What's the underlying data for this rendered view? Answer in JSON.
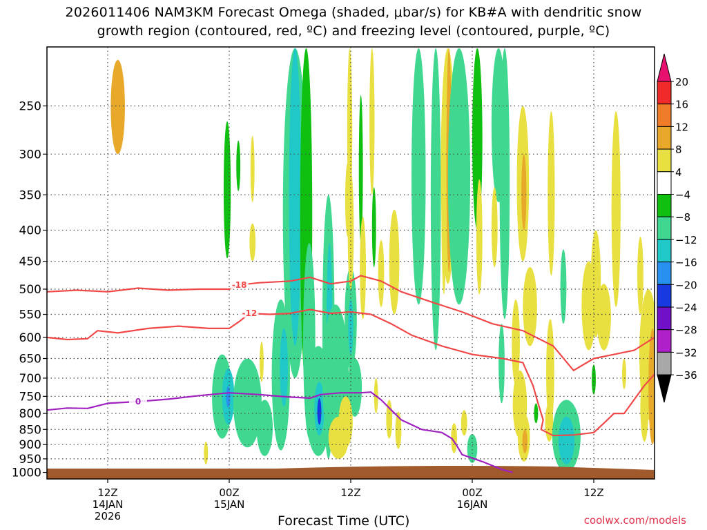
{
  "title_line1": "2026011406 NAM3KM Forecast Omega (shaded, μbar/s) for KB#A with dendritic snow",
  "title_line2": "growth region (contoured, red, ºC) and freezing level (contoured, purple, ºC)",
  "credit": "coolwx.com/models",
  "chart_data": {
    "type": "heatmap",
    "title": "2026011406 NAM3KM Forecast Omega (shaded, μbar/s) for KB#A with dendritic snow growth region (contoured, red, ºC) and freezing level (contoured, purple, ºC)",
    "xlabel": "Forecast Time (UTC)",
    "ylabel": "",
    "x_range_hours": [
      6,
      66
    ],
    "y_range_hpa": [
      200,
      1025
    ],
    "y_ticks": [
      250,
      300,
      350,
      400,
      450,
      500,
      550,
      600,
      650,
      700,
      750,
      800,
      850,
      900,
      950,
      1000
    ],
    "x_ticks": [
      {
        "hour": 12,
        "lines": [
          "12Z",
          "14JAN",
          "2026"
        ]
      },
      {
        "hour": 24,
        "lines": [
          "00Z",
          "15JAN"
        ]
      },
      {
        "hour": 36,
        "lines": [
          "12Z"
        ]
      },
      {
        "hour": 48,
        "lines": [
          "00Z",
          "16JAN"
        ]
      },
      {
        "hour": 60,
        "lines": [
          "12Z"
        ]
      }
    ],
    "grid": true,
    "colorbar": {
      "labels": [
        "20",
        "16",
        "12",
        "8",
        "4",
        "−4",
        "−8",
        "−12",
        "−16",
        "−20",
        "−24",
        "−28",
        "−32",
        "−36"
      ],
      "colors": [
        "#e8106e",
        "#f02a2a",
        "#f07c2a",
        "#e8a82a",
        "#e8e040",
        "#ffffff",
        "#10c010",
        "#40d890",
        "#20c8c8",
        "#2890f0",
        "#1838e0",
        "#7010c8",
        "#b020c8",
        "#a8a8a8",
        "#000000"
      ]
    },
    "contours": [
      {
        "label": "-18",
        "color": "#f04848",
        "points": [
          [
            6,
            505
          ],
          [
            9,
            502
          ],
          [
            12,
            505
          ],
          [
            15,
            498
          ],
          [
            18,
            502
          ],
          [
            21,
            500
          ],
          [
            24,
            500
          ],
          [
            25,
            492
          ],
          [
            27,
            488
          ],
          [
            30,
            485
          ],
          [
            32,
            478
          ],
          [
            34,
            490
          ],
          [
            36,
            485
          ],
          [
            37,
            475
          ],
          [
            39,
            485
          ],
          [
            41,
            505
          ],
          [
            44,
            525
          ],
          [
            47,
            545
          ],
          [
            50,
            570
          ],
          [
            53,
            585
          ],
          [
            56,
            620
          ],
          [
            58,
            680
          ],
          [
            60,
            650
          ],
          [
            62,
            640
          ],
          [
            64,
            630
          ],
          [
            66,
            600
          ]
        ]
      },
      {
        "label": "-12",
        "color": "#f04848",
        "points": [
          [
            6,
            600
          ],
          [
            8,
            605
          ],
          [
            10,
            603
          ],
          [
            11,
            585
          ],
          [
            13,
            590
          ],
          [
            16,
            580
          ],
          [
            19,
            575
          ],
          [
            22,
            580
          ],
          [
            24,
            580
          ],
          [
            25,
            565
          ],
          [
            26,
            548
          ],
          [
            28,
            550
          ],
          [
            30,
            548
          ],
          [
            32,
            540
          ],
          [
            34,
            548
          ],
          [
            36,
            545
          ],
          [
            38,
            550
          ],
          [
            40,
            570
          ],
          [
            42,
            595
          ],
          [
            45,
            620
          ],
          [
            48,
            640
          ],
          [
            51,
            650
          ],
          [
            53,
            660
          ],
          [
            54,
            720
          ],
          [
            54.5,
            770
          ],
          [
            55,
            820
          ],
          [
            54.8,
            850
          ],
          [
            56,
            870
          ],
          [
            58,
            868
          ],
          [
            60,
            860
          ],
          [
            61,
            830
          ],
          [
            62,
            800
          ],
          [
            63,
            800
          ],
          [
            65,
            720
          ],
          [
            66,
            690
          ]
        ]
      },
      {
        "label": "0",
        "color": "#a020c0",
        "points": [
          [
            6,
            790
          ],
          [
            8,
            784
          ],
          [
            10,
            785
          ],
          [
            12,
            770
          ],
          [
            15,
            765
          ],
          [
            18,
            758
          ],
          [
            21,
            748
          ],
          [
            24,
            740
          ],
          [
            27,
            745
          ],
          [
            30,
            752
          ],
          [
            32,
            755
          ],
          [
            33,
            745
          ],
          [
            35,
            740
          ],
          [
            37,
            740
          ],
          [
            38,
            738
          ],
          [
            39,
            760
          ],
          [
            40,
            790
          ],
          [
            41,
            820
          ],
          [
            43,
            850
          ],
          [
            45,
            860
          ],
          [
            46,
            880
          ],
          [
            46.5,
            905
          ],
          [
            47,
            935
          ],
          [
            49,
            960
          ],
          [
            51,
            990
          ],
          [
            52,
            1000
          ]
        ]
      }
    ],
    "omega_cells": [
      {
        "x": 13,
        "p": 255,
        "w": 0.7,
        "dp": 45,
        "value": 8
      },
      {
        "x": 23.8,
        "p": 355,
        "w": 0.35,
        "dp": 90,
        "value": -6
      },
      {
        "x": 24.9,
        "p": 315,
        "w": 0.2,
        "dp": 30,
        "value": -6
      },
      {
        "x": 26.3,
        "p": 320,
        "w": 0.2,
        "dp": 40,
        "value": 4
      },
      {
        "x": 26.3,
        "p": 420,
        "w": 0.3,
        "dp": 30,
        "value": 4
      },
      {
        "x": 30.5,
        "p": 400,
        "w": 1.2,
        "dp": 300,
        "value": -8
      },
      {
        "x": 30.5,
        "p": 400,
        "w": 0.6,
        "dp": 220,
        "value": -12
      },
      {
        "x": 31.6,
        "p": 420,
        "w": 0.6,
        "dp": 300,
        "value": -6
      },
      {
        "x": 31.9,
        "p": 650,
        "w": 0.6,
        "dp": 230,
        "value": -8
      },
      {
        "x": 23.3,
        "p": 760,
        "w": 1.0,
        "dp": 120,
        "value": -8
      },
      {
        "x": 23.9,
        "p": 755,
        "w": 0.6,
        "dp": 80,
        "value": -12
      },
      {
        "x": 23.9,
        "p": 752,
        "w": 0.2,
        "dp": 30,
        "value": -16
      },
      {
        "x": 25.8,
        "p": 780,
        "w": 1.4,
        "dp": 130,
        "value": -8
      },
      {
        "x": 27.5,
        "p": 850,
        "w": 0.8,
        "dp": 90,
        "value": -8
      },
      {
        "x": 29.1,
        "p": 720,
        "w": 0.9,
        "dp": 200,
        "value": -8
      },
      {
        "x": 29.4,
        "p": 680,
        "w": 0.4,
        "dp": 100,
        "value": -12
      },
      {
        "x": 33.8,
        "p": 650,
        "w": 0.6,
        "dp": 300,
        "value": -8
      },
      {
        "x": 33.9,
        "p": 620,
        "w": 0.3,
        "dp": 200,
        "value": -12
      },
      {
        "x": 32.8,
        "p": 780,
        "w": 1.3,
        "dp": 160,
        "value": -8
      },
      {
        "x": 32.9,
        "p": 790,
        "w": 0.5,
        "dp": 80,
        "value": -12
      },
      {
        "x": 32.9,
        "p": 795,
        "w": 0.2,
        "dp": 40,
        "value": -20
      },
      {
        "x": 34.5,
        "p": 730,
        "w": 1.3,
        "dp": 200,
        "value": -8
      },
      {
        "x": 36,
        "p": 570,
        "w": 0.6,
        "dp": 110,
        "value": -8
      },
      {
        "x": 36,
        "p": 580,
        "w": 0.25,
        "dp": 60,
        "value": -12
      },
      {
        "x": 36.4,
        "p": 730,
        "w": 0.7,
        "dp": 80,
        "value": -8
      },
      {
        "x": 35.5,
        "p": 830,
        "w": 0.7,
        "dp": 80,
        "value": 4
      },
      {
        "x": 34.8,
        "p": 880,
        "w": 1.0,
        "dp": 70,
        "value": 4
      },
      {
        "x": 35.9,
        "p": 290,
        "w": 0.25,
        "dp": 90,
        "value": 4
      },
      {
        "x": 36,
        "p": 410,
        "w": 0.3,
        "dp": 90,
        "value": 4
      },
      {
        "x": 35.7,
        "p": 360,
        "w": 0.25,
        "dp": 50,
        "value": 4
      },
      {
        "x": 37,
        "p": 330,
        "w": 0.2,
        "dp": 90,
        "value": -6
      },
      {
        "x": 37.2,
        "p": 470,
        "w": 0.3,
        "dp": 90,
        "value": 4
      },
      {
        "x": 38.1,
        "p": 260,
        "w": 0.25,
        "dp": 90,
        "value": 4
      },
      {
        "x": 40.3,
        "p": 460,
        "w": 0.5,
        "dp": 90,
        "value": 4
      },
      {
        "x": 39,
        "p": 475,
        "w": 0.3,
        "dp": 60,
        "value": 4
      },
      {
        "x": 38.3,
        "p": 400,
        "w": 0.2,
        "dp": 60,
        "value": -6
      },
      {
        "x": 42.7,
        "p": 270,
        "w": 0.7,
        "dp": 260,
        "value": -8
      },
      {
        "x": 44.4,
        "p": 280,
        "w": 0.5,
        "dp": 350,
        "value": -8
      },
      {
        "x": 45.2,
        "p": 380,
        "w": 0.25,
        "dp": 130,
        "value": 4
      },
      {
        "x": 45.6,
        "p": 280,
        "w": 0.7,
        "dp": 210,
        "value": 4
      },
      {
        "x": 45.7,
        "p": 270,
        "w": 0.25,
        "dp": 200,
        "value": 8
      },
      {
        "x": 46.7,
        "p": 320,
        "w": 1.1,
        "dp": 210,
        "value": -8
      },
      {
        "x": 48.5,
        "p": 280,
        "w": 0.5,
        "dp": 120,
        "value": -6
      },
      {
        "x": 48.7,
        "p": 420,
        "w": 0.3,
        "dp": 90,
        "value": 4
      },
      {
        "x": 50.6,
        "p": 270,
        "w": 0.7,
        "dp": 90,
        "value": -8
      },
      {
        "x": 51.2,
        "p": 370,
        "w": 0.5,
        "dp": 190,
        "value": -8
      },
      {
        "x": 50.2,
        "p": 400,
        "w": 0.3,
        "dp": 60,
        "value": 4
      },
      {
        "x": 53,
        "p": 350,
        "w": 0.6,
        "dp": 100,
        "value": 4
      },
      {
        "x": 53.1,
        "p": 350,
        "w": 0.25,
        "dp": 50,
        "value": 8
      },
      {
        "x": 53.7,
        "p": 540,
        "w": 0.7,
        "dp": 80,
        "value": 4
      },
      {
        "x": 52.3,
        "p": 620,
        "w": 0.4,
        "dp": 100,
        "value": 4
      },
      {
        "x": 50.9,
        "p": 670,
        "w": 0.3,
        "dp": 100,
        "value": -8
      },
      {
        "x": 52.7,
        "p": 780,
        "w": 0.7,
        "dp": 100,
        "value": 4
      },
      {
        "x": 53.1,
        "p": 880,
        "w": 0.6,
        "dp": 80,
        "value": 4
      },
      {
        "x": 53.2,
        "p": 890,
        "w": 0.25,
        "dp": 40,
        "value": 8
      },
      {
        "x": 54.3,
        "p": 800,
        "w": 0.2,
        "dp": 30,
        "value": -6
      },
      {
        "x": 55.7,
        "p": 700,
        "w": 0.4,
        "dp": 140,
        "value": 4
      },
      {
        "x": 55.6,
        "p": 830,
        "w": 0.4,
        "dp": 60,
        "value": 4
      },
      {
        "x": 57.3,
        "p": 880,
        "w": 1.4,
        "dp": 120,
        "value": -8
      },
      {
        "x": 57.3,
        "p": 890,
        "w": 0.8,
        "dp": 80,
        "value": -12
      },
      {
        "x": 55.8,
        "p": 365,
        "w": 0.35,
        "dp": 110,
        "value": 4
      },
      {
        "x": 57,
        "p": 500,
        "w": 0.3,
        "dp": 70,
        "value": -8
      },
      {
        "x": 59.5,
        "p": 540,
        "w": 0.7,
        "dp": 90,
        "value": 4
      },
      {
        "x": 60.2,
        "p": 500,
        "w": 0.5,
        "dp": 100,
        "value": 4
      },
      {
        "x": 61,
        "p": 560,
        "w": 0.7,
        "dp": 70,
        "value": 4
      },
      {
        "x": 62.2,
        "p": 395,
        "w": 0.45,
        "dp": 140,
        "value": 4
      },
      {
        "x": 64.6,
        "p": 480,
        "w": 0.3,
        "dp": 70,
        "value": 4
      },
      {
        "x": 65.4,
        "p": 660,
        "w": 0.9,
        "dp": 160,
        "value": 4
      },
      {
        "x": 65,
        "p": 790,
        "w": 0.4,
        "dp": 100,
        "value": 4
      },
      {
        "x": 65.8,
        "p": 740,
        "w": 0.4,
        "dp": 160,
        "value": 8
      },
      {
        "x": 63,
        "p": 690,
        "w": 0.2,
        "dp": 40,
        "value": 4
      },
      {
        "x": 60,
        "p": 705,
        "w": 0.2,
        "dp": 40,
        "value": -6
      },
      {
        "x": 46.2,
        "p": 880,
        "w": 0.3,
        "dp": 50,
        "value": 4
      },
      {
        "x": 47.2,
        "p": 830,
        "w": 0.3,
        "dp": 40,
        "value": 4
      },
      {
        "x": 48,
        "p": 915,
        "w": 0.5,
        "dp": 50,
        "value": -8
      },
      {
        "x": 40.7,
        "p": 855,
        "w": 0.3,
        "dp": 60,
        "value": 4
      },
      {
        "x": 39.8,
        "p": 820,
        "w": 0.3,
        "dp": 60,
        "value": 4
      },
      {
        "x": 38.5,
        "p": 750,
        "w": 0.2,
        "dp": 50,
        "value": 4
      },
      {
        "x": 21.7,
        "p": 930,
        "w": 0.2,
        "dp": 40,
        "value": 4
      },
      {
        "x": 27.2,
        "p": 660,
        "w": 0.2,
        "dp": 50,
        "value": 4
      }
    ]
  }
}
